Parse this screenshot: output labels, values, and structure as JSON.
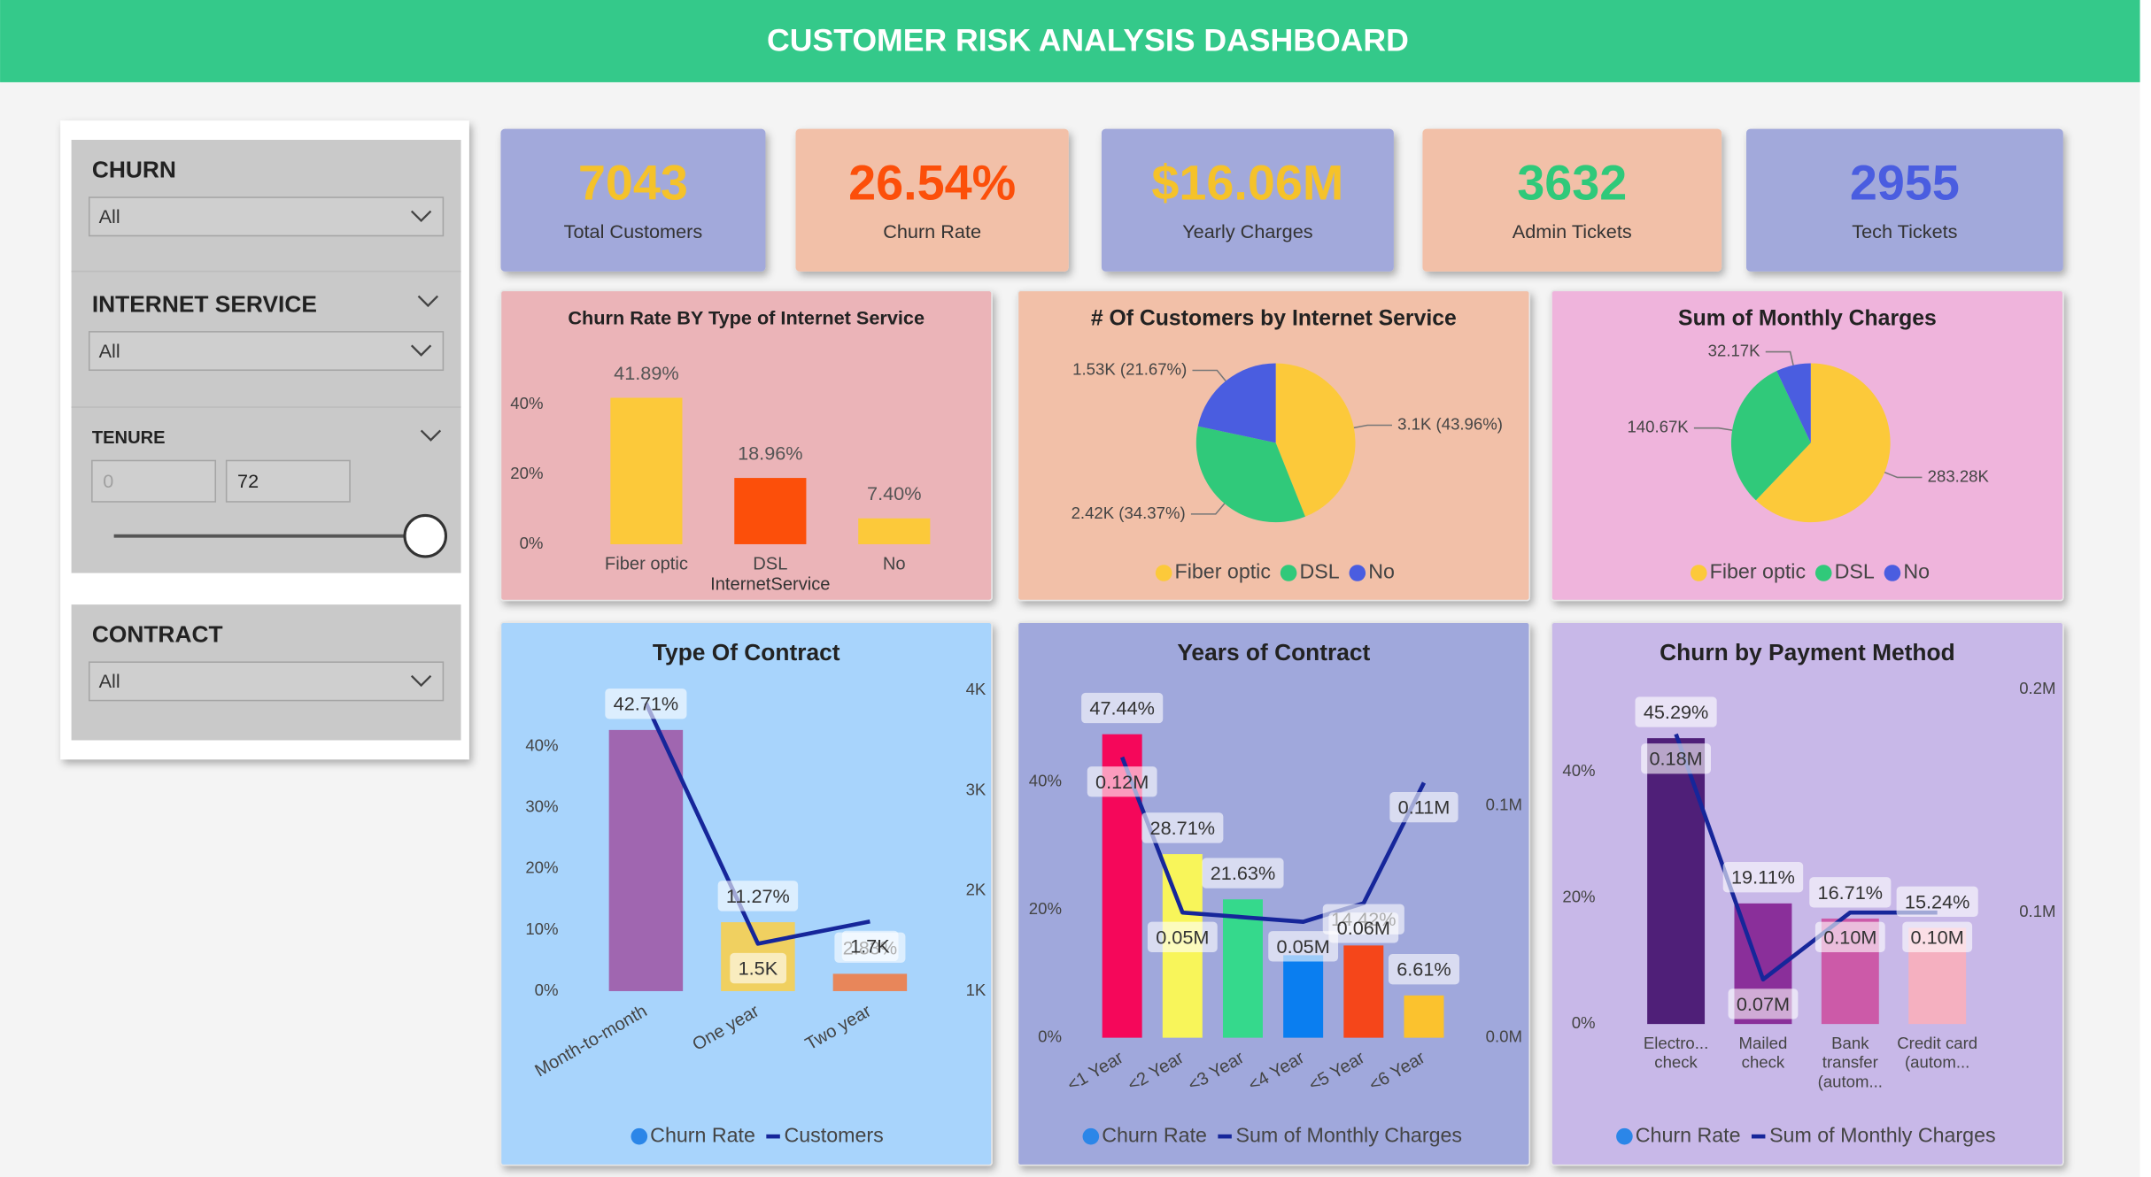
{
  "header": {
    "title": "CUSTOMER RISK ANALYSIS DASHBOARD"
  },
  "filters": [
    {
      "label": "CHURN",
      "value": "All"
    },
    {
      "label": "INTERNET SERVICE",
      "value": "All"
    },
    {
      "label": "TENURE",
      "min": 0,
      "max": 72
    },
    {
      "label": "CONTRACT",
      "value": "All"
    }
  ],
  "kpis": [
    {
      "value": "7043",
      "label": "Total Customers",
      "color": "#f5c22a"
    },
    {
      "value": "26.54%",
      "label": "Churn Rate",
      "color": "#fc4f0a"
    },
    {
      "value": "$16.06M",
      "label": "Yearly Charges",
      "color": "#f5c22a"
    },
    {
      "value": "3632",
      "label": "Admin Tickets",
      "color": "#2fc97a"
    },
    {
      "value": "2955",
      "label": "Tech Tickets",
      "color": "#4a5de0"
    }
  ],
  "chart_data": [
    {
      "type": "bar",
      "title": "Churn Rate BY Type of Internet Service",
      "x_label": "InternetService",
      "categories": [
        "Fiber optic",
        "DSL",
        "No"
      ],
      "values": [
        41.89,
        18.96,
        7.4
      ],
      "value_labels": [
        "41.89%",
        "18.96%",
        "7.40%"
      ],
      "colors": [
        "#fcc93a",
        "#fc4f0a",
        "#fcc93a"
      ],
      "ylim": [
        0,
        50
      ],
      "yticks": [
        {
          "value": 0,
          "label": "0%"
        },
        {
          "value": 20,
          "label": "20%"
        },
        {
          "value": 40,
          "label": "40%"
        }
      ]
    },
    {
      "type": "pie",
      "title": "# Of Customers by Internet Service",
      "categories": [
        "Fiber optic",
        "DSL",
        "No"
      ],
      "values": [
        3096,
        2421,
        1526
      ],
      "value_labels": [
        "3.1K (43.96%)",
        "2.42K (34.37%)",
        "1.53K (21.67%)"
      ],
      "colors": [
        "#fcc93a",
        "#30c97a",
        "#4a5de0"
      ],
      "legend": "bottom"
    },
    {
      "type": "pie",
      "title": "Sum of Monthly Charges",
      "categories": [
        "Fiber optic",
        "DSL",
        "No"
      ],
      "values": [
        283280,
        140670,
        32170
      ],
      "value_labels": [
        "283.28K",
        "140.67K",
        "32.17K"
      ],
      "colors": [
        "#fcc93a",
        "#30c97a",
        "#4a5de0"
      ],
      "legend": "bottom"
    },
    {
      "type": "combo",
      "title": "Type Of Contract",
      "categories": [
        "Month-to-month",
        "One year",
        "Two year"
      ],
      "series": [
        {
          "name": "Churn Rate",
          "color": "#2b86e8",
          "colors": [
            "#a066b0",
            "#f0d060",
            "#e8865a"
          ],
          "values": [
            42.71,
            11.27,
            2.83
          ],
          "value_labels": [
            "42.71%",
            "11.27%",
            "2.83%"
          ]
        },
        {
          "name": "Customers",
          "color": "#16269a",
          "axis": "y2",
          "values": [
            3875,
            1473,
            1695
          ],
          "value_labels": [
            null,
            "1.5K",
            "1.7K"
          ]
        }
      ],
      "ylim": [
        0,
        50
      ],
      "yticks": [
        {
          "value": 0,
          "label": "0%"
        },
        {
          "value": 10,
          "label": "10%"
        },
        {
          "value": 20,
          "label": "20%"
        },
        {
          "value": 30,
          "label": "30%"
        },
        {
          "value": 40,
          "label": "40%"
        }
      ],
      "y2lim": [
        1000,
        4050
      ],
      "y2ticks": [
        {
          "value": 1000,
          "label": "1K"
        },
        {
          "value": 2000,
          "label": "2K"
        },
        {
          "value": 3000,
          "label": "3K"
        },
        {
          "value": 4000,
          "label": "4K"
        }
      ],
      "legend": "bottom"
    },
    {
      "type": "combo",
      "title": "Years of Contract",
      "categories": [
        "<1 Year",
        "<2 Year",
        "<3 Year",
        "<4 Year",
        "<5 Year",
        "<6 Year"
      ],
      "series": [
        {
          "name": "Churn Rate",
          "color": "#2b86e8",
          "colors": [
            "#f5075a",
            "#f8f55a",
            "#35d98c",
            "#0a7ef0",
            "#f5461a",
            "#fbc22e"
          ],
          "values": [
            47.44,
            28.71,
            21.63,
            12.9,
            14.42,
            6.61
          ],
          "value_labels": [
            "47.44%",
            "28.71%",
            "21.63%",
            null,
            "14.42%",
            "6.61%"
          ]
        },
        {
          "name": "Sum of Monthly Charges",
          "color": "#16269a",
          "axis": "y2",
          "values": [
            121000,
            54000,
            52000,
            50000,
            58000,
            110000
          ],
          "value_labels": [
            "0.12M",
            "0.05M",
            null,
            "0.05M",
            "0.06M",
            "0.11M"
          ]
        }
      ],
      "ylim": [
        0,
        54
      ],
      "yticks": [
        {
          "value": 0,
          "label": "0%"
        },
        {
          "value": 20,
          "label": "20%"
        },
        {
          "value": 40,
          "label": "40%"
        }
      ],
      "y2lim": [
        0,
        149000
      ],
      "y2ticks": [
        {
          "value": 0,
          "label": "0.0M"
        },
        {
          "value": 100000,
          "label": "0.1M"
        }
      ],
      "legend": "bottom"
    },
    {
      "type": "combo",
      "title": "Churn by Payment Method",
      "categories": [
        "Electro... check",
        "Mailed check",
        "Bank transfer (autom...",
        "Credit card (autom..."
      ],
      "series": [
        {
          "name": "Churn Rate",
          "color": "#2b86e8",
          "colors": [
            "#4f1f78",
            "#8a2f9a",
            "#cc5aa8",
            "#f5b0c0"
          ],
          "values": [
            45.29,
            19.11,
            16.71,
            15.24
          ],
          "value_labels": [
            "45.29%",
            "19.11%",
            "16.71%",
            "15.24%"
          ]
        },
        {
          "name": "Sum of Monthly Charges",
          "color": "#16269a",
          "axis": "y2",
          "values": [
            180000,
            70000,
            100000,
            100000
          ],
          "value_labels": [
            "0.18M",
            "0.07M",
            "0.10M",
            "0.10M"
          ]
        }
      ],
      "ylim": [
        0,
        53
      ],
      "yticks": [
        {
          "value": 0,
          "label": "0%"
        },
        {
          "value": 20,
          "label": "20%"
        },
        {
          "value": 40,
          "label": "40%"
        }
      ],
      "y2lim": [
        50000,
        200000
      ],
      "y2ticks": [
        {
          "value": 100000,
          "label": "0.1M"
        },
        {
          "value": 200000,
          "label": "0.2M"
        }
      ],
      "legend": "bottom"
    }
  ]
}
